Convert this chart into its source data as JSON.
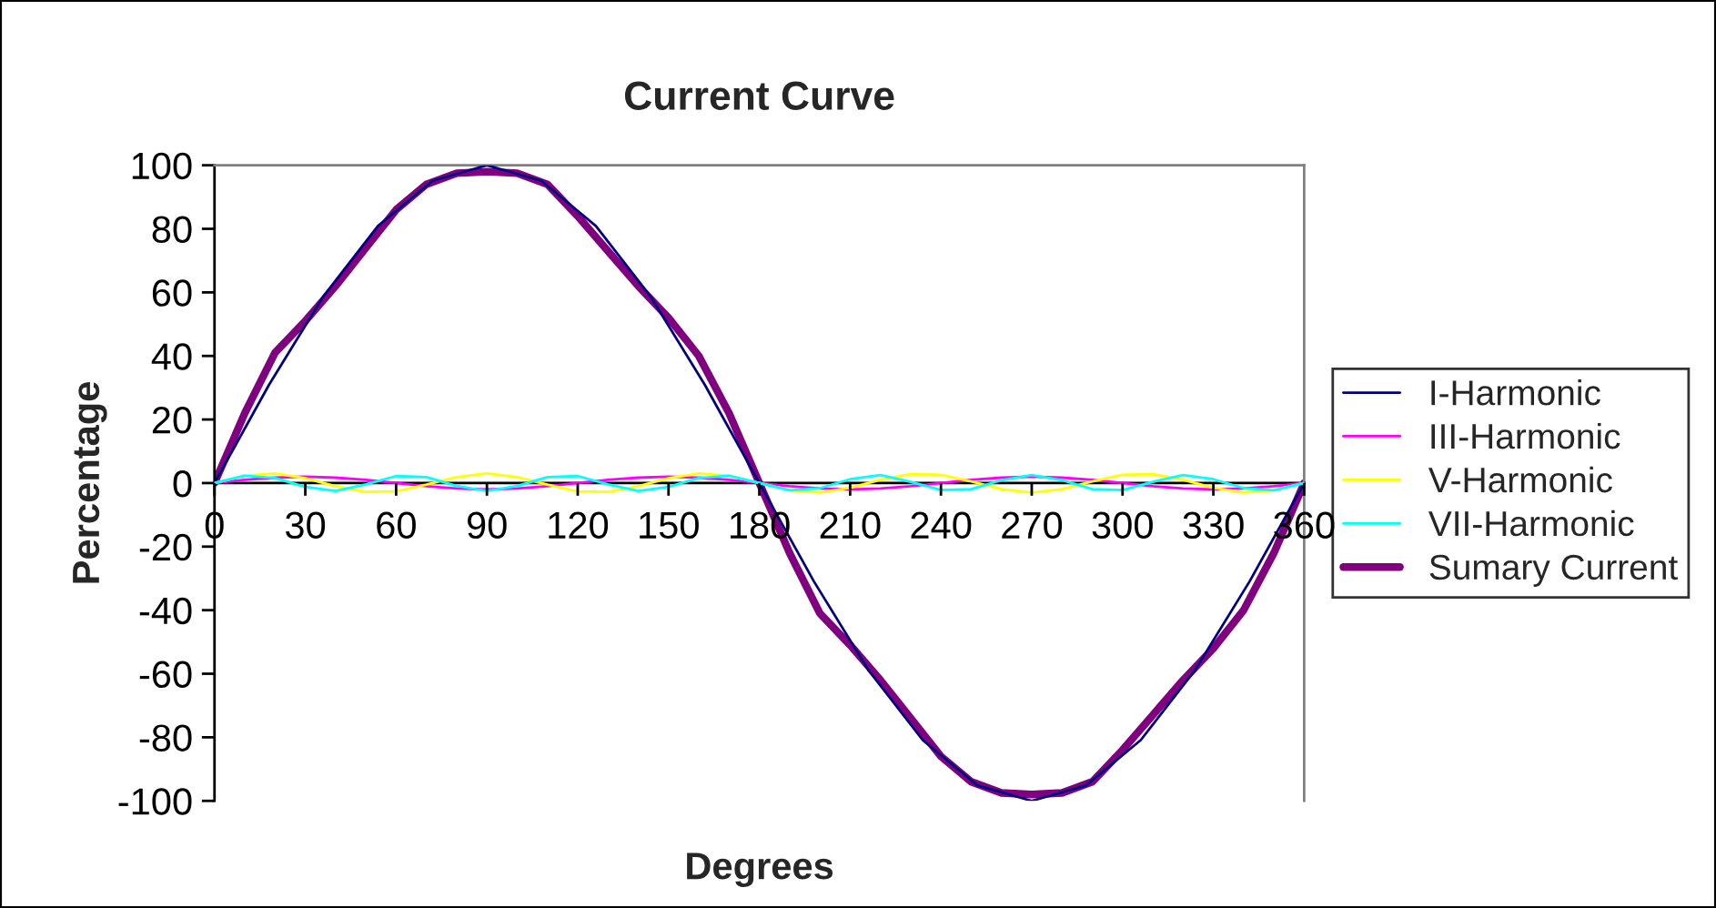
{
  "chart_data": {
    "type": "line",
    "title": "Current Curve",
    "xlabel": "Degrees",
    "ylabel": "Percentage",
    "xlim": [
      0,
      360
    ],
    "xticks": [
      0,
      30,
      60,
      90,
      120,
      150,
      180,
      210,
      240,
      270,
      300,
      330,
      360
    ],
    "ylim": [
      -100,
      100
    ],
    "yticks": [
      -100,
      -80,
      -60,
      -40,
      -20,
      0,
      20,
      40,
      60,
      80,
      100
    ],
    "grid": false,
    "legend": "right",
    "marker": "none",
    "line_style": "solid",
    "series": [
      {
        "name": "I-Harmonic",
        "color": "#000080",
        "x": [
          0,
          18,
          36,
          54,
          72,
          90,
          108,
          126,
          144,
          162,
          180,
          198,
          216,
          234,
          252,
          270,
          288,
          306,
          324,
          342,
          360
        ],
        "values": [
          0,
          30.9,
          58.8,
          80.9,
          95.1,
          100,
          95.1,
          80.9,
          58.8,
          30.9,
          0,
          -30.9,
          -58.8,
          -80.9,
          -95.1,
          -100,
          -95.1,
          -80.9,
          -58.8,
          -30.9,
          0
        ]
      },
      {
        "name": "III-Harmonic",
        "color": "#ff00ff",
        "x": [
          0,
          10,
          20,
          30,
          40,
          50,
          60,
          70,
          80,
          90,
          100,
          110,
          120,
          130,
          140,
          150,
          160,
          170,
          180,
          190,
          200,
          210,
          220,
          230,
          240,
          250,
          260,
          270,
          280,
          290,
          300,
          310,
          320,
          330,
          340,
          350,
          360
        ],
        "values": [
          0,
          1,
          1.7,
          2,
          1.7,
          1,
          0,
          -1,
          -1.7,
          -2,
          -1.7,
          -1,
          0,
          1,
          1.7,
          2,
          1.7,
          1,
          0,
          -1,
          -1.7,
          -2,
          -1.7,
          -1,
          0,
          1,
          1.7,
          2,
          1.7,
          1,
          0,
          -1,
          -1.7,
          -2,
          -1.7,
          -1,
          0
        ]
      },
      {
        "name": "V-Harmonic",
        "color": "#ffff00",
        "x": [
          0,
          10,
          20,
          30,
          40,
          50,
          60,
          70,
          80,
          90,
          100,
          110,
          120,
          130,
          140,
          150,
          160,
          170,
          180,
          190,
          200,
          210,
          220,
          230,
          240,
          250,
          260,
          270,
          280,
          290,
          300,
          310,
          320,
          330,
          340,
          350,
          360
        ],
        "values": [
          0,
          2.3,
          3,
          1.5,
          -1,
          -2.8,
          -2.6,
          -0.5,
          1.9,
          3,
          1.9,
          -0.5,
          -2.6,
          -2.8,
          -1,
          1.5,
          3,
          2.3,
          0,
          -2.3,
          -3,
          -1.5,
          1,
          2.8,
          2.6,
          0.5,
          -1.9,
          -3,
          -1.9,
          0.5,
          2.6,
          2.8,
          1,
          -1.5,
          -3,
          -2.3,
          0
        ]
      },
      {
        "name": "VII-Harmonic",
        "color": "#00ffff",
        "x": [
          0,
          10,
          20,
          30,
          40,
          50,
          60,
          70,
          80,
          90,
          100,
          110,
          120,
          130,
          140,
          150,
          160,
          170,
          180,
          190,
          200,
          210,
          220,
          230,
          240,
          250,
          260,
          270,
          280,
          290,
          300,
          310,
          320,
          330,
          340,
          350,
          360
        ],
        "values": [
          0,
          2.3,
          1.6,
          -1.2,
          -2.5,
          -0.4,
          2.2,
          1.9,
          -0.9,
          -2.5,
          -0.9,
          1.9,
          2.2,
          -0.4,
          -2.5,
          -1.2,
          1.6,
          2.3,
          0,
          -2.3,
          -1.6,
          1.2,
          2.5,
          0.4,
          -2.2,
          -1.9,
          0.9,
          2.5,
          0.9,
          -1.9,
          -2.2,
          0.4,
          2.5,
          1.2,
          -1.6,
          -2.3,
          0
        ]
      },
      {
        "name": "Sumary Current",
        "color": "#800080",
        "x": [
          0,
          10,
          20,
          30,
          40,
          50,
          60,
          70,
          80,
          90,
          100,
          110,
          120,
          130,
          140,
          150,
          160,
          170,
          180,
          190,
          200,
          210,
          220,
          230,
          240,
          250,
          260,
          270,
          280,
          290,
          300,
          310,
          320,
          330,
          340,
          350,
          360
        ],
        "values": [
          0,
          22,
          41,
          51,
          62,
          74,
          86,
          94,
          97.5,
          98,
          97.5,
          94,
          84,
          73,
          62,
          52,
          40,
          22,
          0,
          -22,
          -41,
          -51,
          -62,
          -74,
          -86,
          -94,
          -97.5,
          -98,
          -97.5,
          -94,
          -84,
          -73,
          -62,
          -52,
          -40,
          -22,
          0
        ]
      }
    ]
  }
}
